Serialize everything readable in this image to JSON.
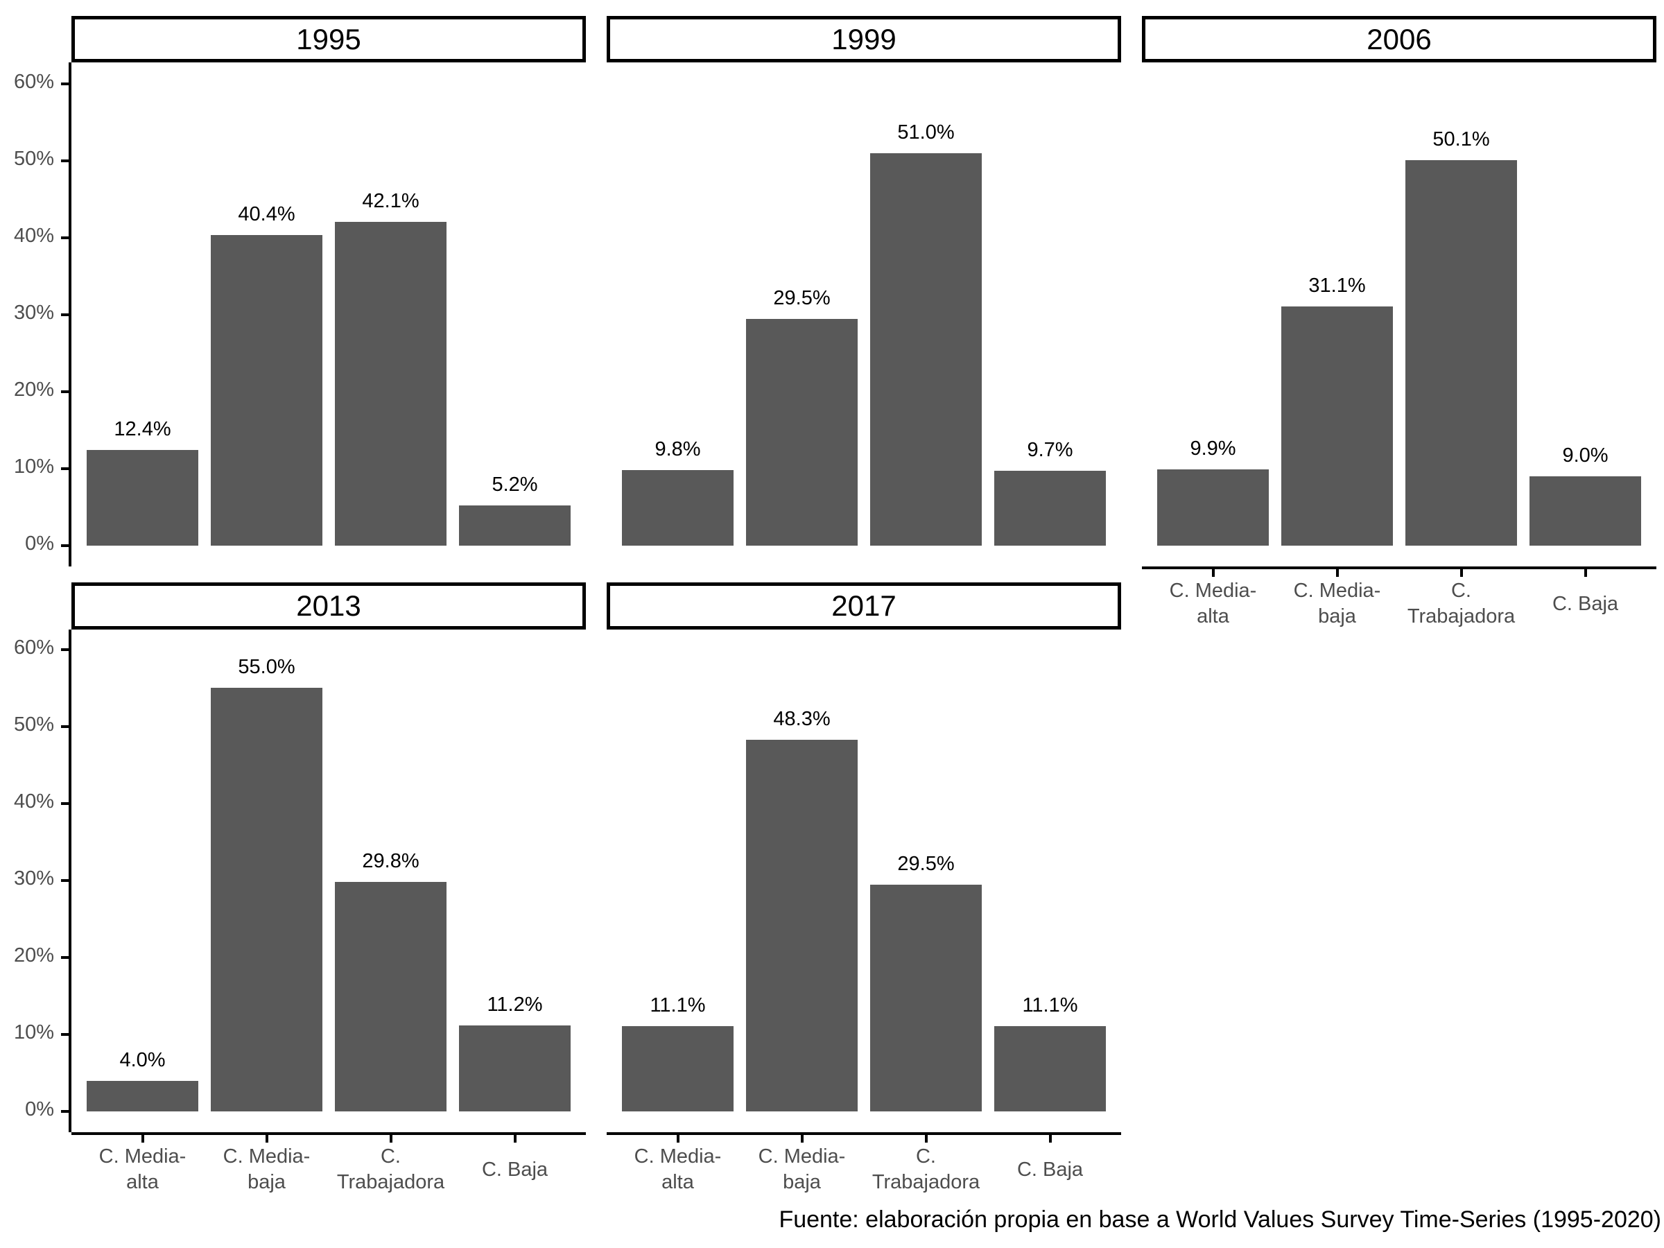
{
  "chart_data": {
    "type": "bar",
    "facet_by": "year",
    "categories": [
      "C. Media-alta",
      "C. Media-baja",
      "C. Trabajadora",
      "C. Baja"
    ],
    "categories_display": [
      "C. Media-\nalta",
      "C. Media-\nbaja",
      "C.\nTrabajadora",
      "C. Baja"
    ],
    "facets": [
      {
        "title": "1995",
        "values": [
          12.4,
          40.4,
          42.1,
          5.2
        ],
        "labels": [
          "12.4%",
          "40.4%",
          "42.1%",
          "5.2%"
        ]
      },
      {
        "title": "1999",
        "values": [
          9.8,
          29.5,
          51.0,
          9.7
        ],
        "labels": [
          "9.8%",
          "29.5%",
          "51.0%",
          "9.7%"
        ]
      },
      {
        "title": "2006",
        "values": [
          9.9,
          31.1,
          50.1,
          9.0
        ],
        "labels": [
          "9.9%",
          "31.1%",
          "50.1%",
          "9.0%"
        ]
      },
      {
        "title": "2013",
        "values": [
          4.0,
          55.0,
          29.8,
          11.2
        ],
        "labels": [
          "4.0%",
          "55.0%",
          "29.8%",
          "11.2%"
        ]
      },
      {
        "title": "2017",
        "values": [
          11.1,
          48.3,
          29.5,
          11.1
        ],
        "labels": [
          "11.1%",
          "48.3%",
          "29.5%",
          "11.1%"
        ]
      }
    ],
    "y_axis": {
      "tick_values": [
        0,
        10,
        20,
        30,
        40,
        50,
        60
      ],
      "tick_labels": [
        "0%",
        "10%",
        "20%",
        "30%",
        "40%",
        "50%",
        "60%"
      ],
      "range": [
        -2.7,
        62.8
      ]
    },
    "grid": false,
    "legend": "none",
    "bar_color": "#595959",
    "axis_text_color": "#4d4d4d",
    "axis_line_color": "#000000",
    "source_note": "Fuente: elaboración propia en base a World Values Survey Time-Series (1995-2020)"
  }
}
